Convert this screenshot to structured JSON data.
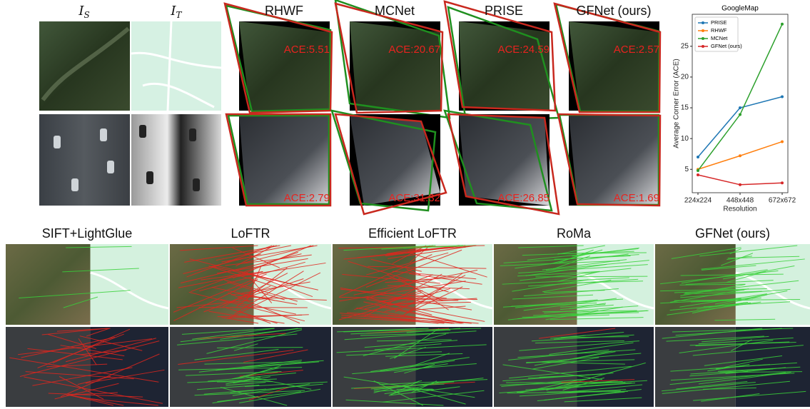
{
  "figure": {
    "top_inputs": [
      {
        "base": "I",
        "sub": "S"
      },
      {
        "base": "I",
        "sub": "T"
      }
    ],
    "top_methods": [
      "RHWF",
      "MCNet",
      "PRISE",
      "GFNet (ours)"
    ],
    "ace_labels": [
      [
        "ACE:5.51",
        "ACE:20.67",
        "ACE:24.59",
        "ACE:2.57"
      ],
      [
        "ACE:2.79",
        "ACE:31.32",
        "ACE:26.85",
        "ACE:1.69"
      ]
    ],
    "bottom_methods": [
      "SIFT+LightGlue",
      "LoFTR",
      "Efficient LoFTR",
      "RoMa",
      "GFNet (ours)"
    ]
  },
  "chart_data": {
    "type": "line",
    "title": "GoogleMap",
    "x_label": "Resolution",
    "y_label": "Average Corner Error (ACE)",
    "categories": [
      "224x224",
      "448x448",
      "672x672"
    ],
    "series": [
      {
        "name": "PRISE",
        "color": "#1f77b4",
        "values": [
          7.0,
          15.0,
          16.8
        ]
      },
      {
        "name": "RHWF",
        "color": "#ff7f0e",
        "values": [
          5.0,
          7.2,
          9.5
        ]
      },
      {
        "name": "MCNet",
        "color": "#2ca02c",
        "values": [
          4.8,
          13.9,
          28.6
        ]
      },
      {
        "name": "GFNet (ours)",
        "color": "#d62728",
        "values": [
          4.1,
          2.5,
          2.8
        ]
      }
    ],
    "ylim": [
      1.2,
      30.2
    ],
    "yticks": [
      5,
      10,
      15,
      20,
      25
    ],
    "legend": "upper left"
  }
}
